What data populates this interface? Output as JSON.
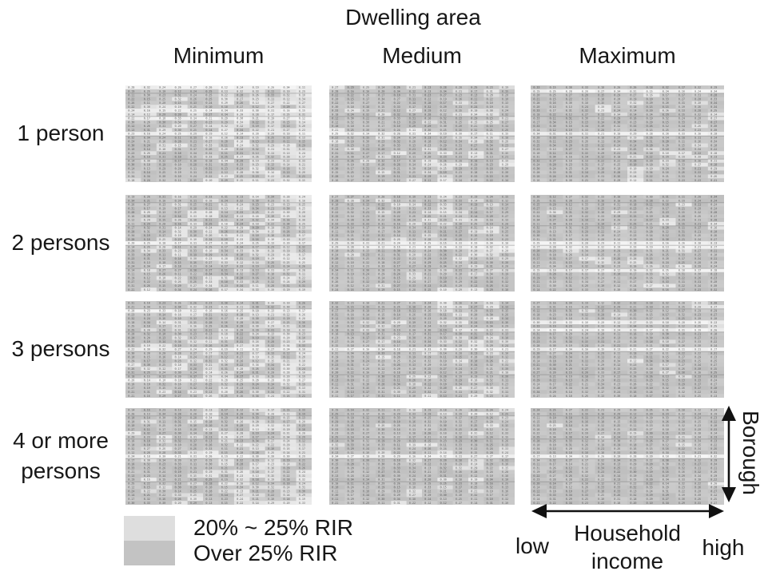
{
  "title": "Dwelling area",
  "columns": [
    "Minimum",
    "Medium",
    "Maximum"
  ],
  "rows": [
    "1 person",
    "2 persons",
    "3 persons",
    "4 or more persons"
  ],
  "legend": [
    {
      "label": "20% ~ 25% RIR",
      "color": "#dedede"
    },
    {
      "label": "Over 25% RIR",
      "color": "#c3c3c3"
    }
  ],
  "axes": {
    "x": {
      "label": "Household income",
      "low": "low",
      "high": "high"
    },
    "y": {
      "label": "Borough"
    }
  },
  "chart_data": {
    "type": "heatmap",
    "title": "Dwelling area",
    "layout": "4 x 3 grid of heatmap panels",
    "panel_rows": [
      "1 person",
      "2 persons",
      "3 persons",
      "4 or more persons"
    ],
    "panel_cols": [
      "Minimum",
      "Medium",
      "Maximum"
    ],
    "panel_cell_grid": {
      "rows": 25,
      "cols": 12
    },
    "x_axis": {
      "label": "Household income",
      "low_label": "low",
      "high_label": "high"
    },
    "y_axis": {
      "label": "Borough"
    },
    "value_classes": [
      {
        "label": "20% ~ 25% RIR",
        "color": "#dedede"
      },
      {
        "label": "Over 25% RIR",
        "color": "#c3c3c3"
      }
    ],
    "cells": "each panel is a borough (vertical) by household-income level (horizontal) table of tiny RIR values; individual numbers are not legible at source resolution"
  }
}
